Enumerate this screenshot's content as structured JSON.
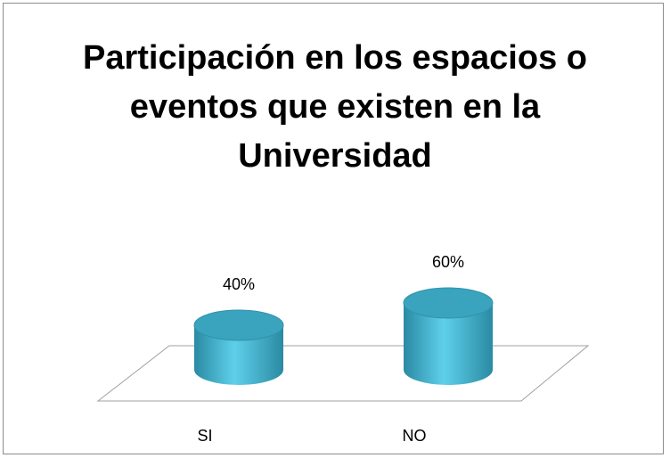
{
  "chart_data": {
    "type": "cylinder",
    "title": "Participación en los espacios o eventos que existen en la Universidad",
    "categories": [
      "SI",
      "NO"
    ],
    "values": [
      40,
      60
    ],
    "value_labels": [
      "40%",
      "60%"
    ],
    "color": "#4bbcd6"
  }
}
